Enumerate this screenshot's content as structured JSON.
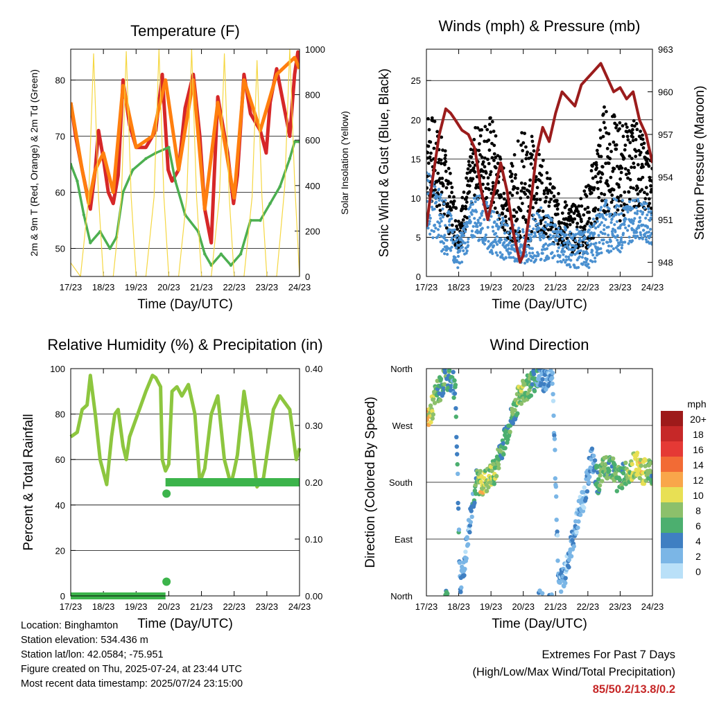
{
  "chart_data": [
    {
      "type": "line",
      "title": "Temperature (F)",
      "xlabel": "Time (Day/UTC)",
      "ylabel": "2m & 9m T (Red, Orange) & 2m Td (Green)",
      "y2label": "Solar Insolation (Yellow)",
      "x_ticks": [
        "17/23",
        "18/23",
        "19/23",
        "20/23",
        "21/23",
        "22/23",
        "23/23",
        "24/23"
      ],
      "xlim": [
        0,
        7
      ],
      "ylim": [
        45,
        85.5
      ],
      "y_ticks": [
        50,
        60,
        70,
        80
      ],
      "y2lim": [
        0,
        1000
      ],
      "y2_ticks": [
        0,
        200,
        400,
        600,
        800,
        1000
      ],
      "grid": true,
      "series": [
        {
          "name": "2m T",
          "color": "#d62728",
          "x": [
            0,
            0.15,
            0.35,
            0.6,
            0.75,
            0.85,
            1.0,
            1.15,
            1.3,
            1.45,
            1.6,
            1.8,
            2.0,
            2.3,
            2.6,
            2.8,
            2.98,
            3.1,
            3.3,
            3.5,
            3.75,
            3.95,
            4.1,
            4.3,
            4.5,
            4.8,
            4.98,
            5.1,
            5.3,
            5.5,
            5.8,
            5.98,
            6.1,
            6.3,
            6.5,
            6.7,
            6.85,
            6.95,
            7.0
          ],
          "y": [
            76,
            70,
            64,
            57,
            64,
            71,
            66,
            60,
            58,
            63,
            80,
            72,
            68,
            68,
            71,
            81,
            64,
            62,
            64,
            75,
            81,
            70,
            57,
            51,
            77,
            67,
            58,
            63,
            81,
            74,
            71,
            67,
            76,
            82,
            76,
            70,
            81,
            85,
            82
          ]
        },
        {
          "name": "9m T",
          "color": "#ff7f0e",
          "x": [
            0,
            0.35,
            0.55,
            0.75,
            1.0,
            1.3,
            1.6,
            2.0,
            2.5,
            2.9,
            3.3,
            3.75,
            4.1,
            4.5,
            5.0,
            5.3,
            5.8,
            6.3,
            6.85,
            7.0
          ],
          "y": [
            76,
            64,
            58,
            64,
            67,
            60,
            79,
            68,
            70,
            80,
            64,
            80,
            57,
            76,
            59,
            80,
            71,
            81,
            84,
            82
          ]
        },
        {
          "name": "2m Td",
          "color": "#4caf50",
          "x": [
            0,
            0.2,
            0.4,
            0.6,
            0.9,
            1.2,
            1.4,
            1.6,
            1.9,
            2.3,
            2.6,
            3.0,
            3.2,
            3.5,
            3.9,
            4.1,
            4.3,
            4.6,
            4.9,
            5.2,
            5.5,
            5.8,
            6.1,
            6.4,
            6.7,
            6.85,
            7.0
          ],
          "y": [
            65,
            62,
            56,
            51,
            53,
            50,
            52,
            60,
            64,
            66,
            67,
            68,
            62,
            56,
            53,
            49,
            47,
            49,
            47,
            49,
            55,
            55,
            58,
            61,
            66,
            69,
            69
          ]
        },
        {
          "name": "Solar Insolation",
          "color": "#f5d742",
          "axis": "y2",
          "x": [
            0,
            0.3,
            0.55,
            0.7,
            0.85,
            1.0,
            1.3,
            1.55,
            1.7,
            1.85,
            2.0,
            2.3,
            2.55,
            2.7,
            2.85,
            3.0,
            3.3,
            3.55,
            3.7,
            3.85,
            4.0,
            4.3,
            4.55,
            4.7,
            4.85,
            5.0,
            5.3,
            5.55,
            5.7,
            5.85,
            6.0,
            6.3,
            6.55,
            6.7,
            6.85,
            7.0
          ],
          "y": [
            60,
            0,
            350,
            980,
            350,
            0,
            0,
            350,
            990,
            350,
            0,
            0,
            350,
            1000,
            350,
            0,
            0,
            350,
            1000,
            350,
            0,
            0,
            350,
            980,
            350,
            0,
            0,
            350,
            950,
            350,
            0,
            0,
            400,
            1000,
            420,
            0
          ]
        }
      ]
    },
    {
      "type": "scatter",
      "title": "Winds (mph) & Pressure (mb)",
      "xlabel": "Time (Day/UTC)",
      "ylabel": "Sonic Wind & Gust (Blue, Black)",
      "y2label": "Station Pressure (Maroon)",
      "x_ticks": [
        "17/23",
        "18/23",
        "19/23",
        "20/23",
        "21/23",
        "22/23",
        "23/23",
        "24/23"
      ],
      "xlim": [
        0,
        7
      ],
      "ylim": [
        0,
        29
      ],
      "y_ticks": [
        0,
        5,
        10,
        15,
        20,
        25
      ],
      "y2lim": [
        947,
        963
      ],
      "y2_ticks": [
        948,
        951,
        954,
        957,
        960,
        963
      ],
      "grid": true,
      "series": [
        {
          "name": "Gust",
          "color": "#000000",
          "kind": "band",
          "x": [
            0,
            0.5,
            1.0,
            1.5,
            2.0,
            2.5,
            3.0,
            3.5,
            4.0,
            4.5,
            5.0,
            5.5,
            6.0,
            6.5,
            7.0
          ],
          "y_low": [
            10,
            7,
            3,
            10,
            8,
            5,
            3,
            6,
            4,
            3,
            3,
            8,
            7,
            9,
            8
          ],
          "y_high": [
            22,
            18,
            8,
            19,
            21,
            12,
            21,
            16,
            11,
            9,
            12,
            22,
            20,
            20,
            15
          ]
        },
        {
          "name": "Wind",
          "color": "#4a90d0",
          "kind": "band",
          "x": [
            0,
            0.5,
            1.0,
            1.5,
            2.0,
            2.5,
            3.0,
            3.5,
            4.0,
            4.5,
            5.0,
            5.5,
            6.0,
            6.5,
            7.0
          ],
          "y_low": [
            6,
            3,
            1,
            5,
            3,
            2,
            1,
            2,
            2,
            1,
            1,
            3,
            3,
            5,
            4
          ],
          "y_high": [
            14,
            11,
            5,
            11,
            9,
            7,
            6,
            9,
            7,
            6,
            6,
            10,
            10,
            10,
            9
          ]
        },
        {
          "name": "Pressure",
          "color": "#9b1c1c",
          "axis": "y2",
          "x": [
            0,
            0.2,
            0.4,
            0.6,
            0.75,
            0.9,
            1.1,
            1.3,
            1.5,
            1.7,
            1.9,
            2.1,
            2.3,
            2.5,
            2.7,
            2.9,
            3.0,
            3.2,
            3.4,
            3.6,
            3.8,
            4.0,
            4.2,
            4.4,
            4.6,
            4.8,
            5.0,
            5.2,
            5.4,
            5.6,
            5.8,
            6.0,
            6.2,
            6.4,
            6.6,
            6.8,
            7.0
          ],
          "y": [
            950.5,
            954,
            957,
            958.8,
            958.5,
            958,
            957.3,
            957,
            956,
            953,
            951,
            953,
            955,
            953,
            950,
            948,
            948.5,
            951.5,
            955.5,
            957.5,
            956.5,
            958.5,
            960,
            959.5,
            959,
            960.5,
            961,
            961.5,
            962,
            961,
            960,
            960.3,
            959.5,
            960,
            958,
            957,
            955
          ]
        }
      ]
    },
    {
      "type": "line",
      "title": "Relative Humidity (%) & Precipitation (in)",
      "xlabel": "Time (Day/UTC)",
      "ylabel": "Percent & Total Rainfall",
      "x_ticks": [
        "17/23",
        "18/23",
        "19/23",
        "20/23",
        "21/23",
        "22/23",
        "23/23",
        "24/23"
      ],
      "xlim": [
        0,
        7
      ],
      "ylim": [
        0,
        100
      ],
      "y_ticks": [
        0,
        20,
        40,
        60,
        80,
        100
      ],
      "y2lim": [
        0,
        0.4
      ],
      "y2_ticks": [
        "0.00",
        "0.10",
        "0.20",
        "0.30",
        "0.40"
      ],
      "grid": true,
      "series": [
        {
          "name": "RH",
          "color": "#8dc63f",
          "x": [
            0,
            0.2,
            0.35,
            0.5,
            0.6,
            0.75,
            0.9,
            1.1,
            1.25,
            1.35,
            1.45,
            1.6,
            1.7,
            1.8,
            2.0,
            2.3,
            2.5,
            2.6,
            2.75,
            2.8,
            2.9,
            3.0,
            3.1,
            3.25,
            3.4,
            3.6,
            3.8,
            3.95,
            4.1,
            4.3,
            4.5,
            4.7,
            4.9,
            5.0,
            5.1,
            5.3,
            5.5,
            5.7,
            5.9,
            6.0,
            6.2,
            6.4,
            6.5,
            6.7,
            6.9,
            7.0
          ],
          "y": [
            70,
            72,
            82,
            84,
            97,
            80,
            60,
            49,
            70,
            80,
            82,
            66,
            60,
            70,
            78,
            90,
            97,
            96,
            92,
            60,
            55,
            58,
            90,
            92,
            88,
            93,
            80,
            50,
            56,
            80,
            88,
            60,
            49,
            55,
            62,
            90,
            72,
            48,
            52,
            62,
            82,
            88,
            86,
            82,
            60,
            65
          ]
        },
        {
          "name": "Precip",
          "color": "#3cb44b",
          "axis": "y2",
          "x": [
            0,
            2.9,
            2.9,
            7.0
          ],
          "y": [
            0.0,
            0.0,
            0.2,
            0.2
          ]
        }
      ],
      "markers": [
        {
          "x": 2.93,
          "y2": 0.18
        },
        {
          "x": 2.93,
          "y2": 0.025
        }
      ]
    },
    {
      "type": "scatter",
      "title": "Wind Direction",
      "xlabel": "Time (Day/UTC)",
      "ylabel": "Direction (Colored By Speed)",
      "x_ticks": [
        "17/23",
        "18/23",
        "19/23",
        "20/23",
        "21/23",
        "22/23",
        "23/23",
        "24/23"
      ],
      "xlim": [
        0,
        7
      ],
      "ylim": [
        0,
        360
      ],
      "y_ticks": [
        "North",
        "East",
        "South",
        "West",
        "North"
      ],
      "grid": true,
      "colorbar": {
        "title": "mph",
        "labels": [
          "20+",
          "18",
          "16",
          "14",
          "12",
          "10",
          "8",
          "6",
          "4",
          "2",
          "0"
        ],
        "colors": [
          "#9e1a1a",
          "#c62828",
          "#e53935",
          "#f26b35",
          "#f9a64a",
          "#e8e054",
          "#8cc06b",
          "#4caf6f",
          "#3f7fc2",
          "#7bb6e6",
          "#b9e0f8"
        ]
      },
      "series": [
        {
          "name": "direction",
          "x": [
            0,
            0.2,
            0.3,
            0.45,
            0.6,
            0.75,
            0.9,
            1.05,
            1.2,
            1.3,
            1.4,
            1.55,
            1.7,
            1.85,
            2.0,
            2.15,
            2.3,
            2.5,
            2.7,
            2.9,
            3.1,
            3.3,
            3.5,
            3.7,
            3.9,
            4.1,
            4.3,
            4.5,
            4.7,
            4.9,
            5.1,
            5.3,
            5.5,
            5.7,
            5.9,
            6.1,
            6.3,
            6.5,
            6.7,
            6.9,
            7.0
          ],
          "y": [
            275,
            300,
            320,
            330,
            350,
            340,
            330,
            10,
            60,
            100,
            140,
            180,
            180,
            180,
            190,
            200,
            230,
            260,
            290,
            320,
            330,
            340,
            350,
            340,
            355,
            10,
            40,
            80,
            130,
            160,
            220,
            180,
            200,
            210,
            185,
            190,
            200,
            210,
            195,
            200,
            190
          ],
          "speed": [
            12,
            8,
            7,
            5,
            6,
            5,
            4,
            3,
            2,
            2,
            3,
            6,
            10,
            8,
            9,
            7,
            6,
            5,
            6,
            8,
            7,
            5,
            4,
            3,
            2,
            2,
            2,
            3,
            2,
            2,
            3,
            6,
            7,
            6,
            7,
            6,
            8,
            9,
            10,
            7,
            6
          ]
        }
      ]
    }
  ],
  "info": {
    "location": "Location: Binghamton",
    "elevation": "Station elevation: 534.436 m",
    "latlon": "Station lat/lon: 42.0584; -75.951",
    "created": "Figure created on Thu, 2025-07-24, at 23:44 UTC",
    "recent": "Most recent data timestamp: 2025/07/24 23:15:00"
  },
  "extremes": {
    "title": "Extremes For Past 7 Days",
    "subtitle": "(High/Low/Max Wind/Total Precipitation)",
    "values": "85/50.2/13.8/0.2"
  }
}
